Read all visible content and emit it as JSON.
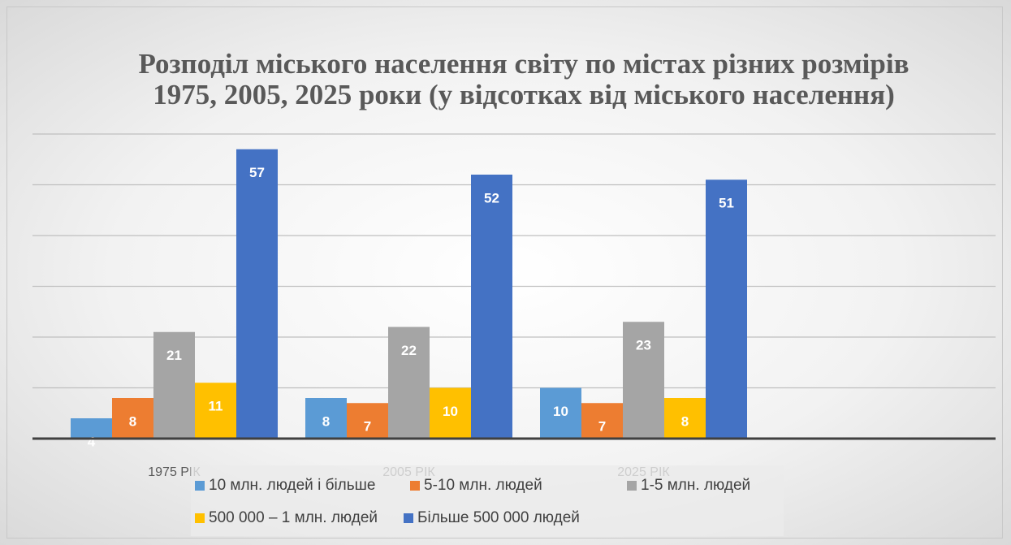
{
  "chart_data": {
    "type": "bar",
    "title": "Розподіл міського населення світу по містах різних розмірів 1975, 2005, 2025 роки (у відсотках від міського населення)",
    "categories": [
      "1975 РІК",
      "2005 РІК",
      "2025 РІК",
      null
    ],
    "series": [
      {
        "name": "10 млн. людей і більше",
        "color": "#5b9bd5",
        "values": [
          4,
          8,
          10,
          null
        ]
      },
      {
        "name": "5-10 млн. людей",
        "color": "#ed7d31",
        "values": [
          8,
          7,
          7,
          null
        ]
      },
      {
        "name": "1-5 млн. людей",
        "color": "#a5a5a5",
        "values": [
          21,
          22,
          23,
          null
        ]
      },
      {
        "name": "500 000 – 1 млн. людей",
        "color": "#ffc000",
        "values": [
          11,
          10,
          8,
          null
        ]
      },
      {
        "name": "Більше 500 000 людей",
        "color": "#4472c4",
        "values": [
          57,
          52,
          51,
          null
        ]
      }
    ],
    "ylim": [
      0,
      60
    ],
    "yticks": [
      0,
      10,
      20,
      30,
      40,
      50,
      60
    ],
    "grid": true,
    "legend": "bottom"
  }
}
